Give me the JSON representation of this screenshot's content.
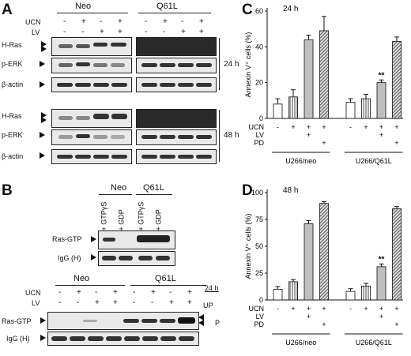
{
  "panels": {
    "a": "A",
    "b": "B",
    "c": "C",
    "d": "D"
  },
  "panel_a": {
    "groups": [
      "Neo",
      "Q61L"
    ],
    "row_ucn": "UCN",
    "row_lv": "LV",
    "ucn_signs": [
      "-",
      "+",
      "-",
      "+",
      "-",
      "+",
      "-",
      "+"
    ],
    "lv_signs": [
      "-",
      "-",
      "+",
      "+",
      "-",
      "-",
      "+",
      "+"
    ],
    "blot_labels": [
      "H-Ras",
      "p-ERK",
      "β-actin"
    ],
    "time_24": "24 h",
    "time_48": "48 h"
  },
  "panel_b": {
    "groups": [
      "Neo",
      "Q61L"
    ],
    "treat_labels": [
      "GTPγS",
      "GDP",
      "GTPγS",
      "GDP"
    ],
    "treat_signs": [
      "+",
      "+",
      "+",
      "+"
    ],
    "blot_labels": [
      "Ras-GTP",
      "IgG (H)"
    ],
    "time_24": "24 h",
    "up": "UP",
    "p": "P"
  },
  "chart_data": [
    {
      "type": "bar",
      "title": "24 h",
      "ylabel": "Annexin V⁺ cells (%)",
      "ylim": [
        0,
        60
      ],
      "yticks": [
        0,
        20,
        40,
        60
      ],
      "ytick_labels": [
        "0",
        "20",
        "40",
        "60"
      ],
      "row_labels": [
        "UCN",
        "LV",
        "PD"
      ],
      "conditions": [
        {
          "ucn": "-",
          "lv": "",
          "pd": ""
        },
        {
          "ucn": "+",
          "lv": "",
          "pd": ""
        },
        {
          "ucn": "+",
          "lv": "+",
          "pd": ""
        },
        {
          "ucn": "+",
          "lv": "",
          "pd": "+"
        },
        {
          "ucn": "-",
          "lv": "",
          "pd": ""
        },
        {
          "ucn": "+",
          "lv": "",
          "pd": ""
        },
        {
          "ucn": "+",
          "lv": "+",
          "pd": ""
        },
        {
          "ucn": "+",
          "lv": "",
          "pd": "+"
        }
      ],
      "groups": [
        "U266/neo",
        "U266/Q61L"
      ],
      "values": [
        8,
        12,
        44,
        49,
        9,
        11,
        20,
        43
      ],
      "errors": [
        3,
        4,
        2.5,
        8,
        2,
        2.5,
        1.5,
        2.5
      ],
      "patterns": [
        "white",
        "vstripe",
        "gray",
        "dstripe",
        "white",
        "vstripe",
        "gray",
        "dstripe"
      ],
      "annotation": {
        "text": "**",
        "bar_index": 6
      }
    },
    {
      "type": "bar",
      "title": "48 h",
      "ylabel": "Annexin V⁺ cells (%)",
      "ylim": [
        0,
        100
      ],
      "yticks": [
        0,
        25,
        50,
        75,
        100
      ],
      "ytick_labels": [
        "0",
        "25",
        "50",
        "75",
        "100"
      ],
      "row_labels": [
        "UCN",
        "LV",
        "PD"
      ],
      "conditions": [
        {
          "ucn": "-",
          "lv": "",
          "pd": ""
        },
        {
          "ucn": "+",
          "lv": "",
          "pd": ""
        },
        {
          "ucn": "+",
          "lv": "+",
          "pd": ""
        },
        {
          "ucn": "+",
          "lv": "",
          "pd": "+"
        },
        {
          "ucn": "-",
          "lv": "",
          "pd": ""
        },
        {
          "ucn": "+",
          "lv": "",
          "pd": ""
        },
        {
          "ucn": "+",
          "lv": "+",
          "pd": ""
        },
        {
          "ucn": "+",
          "lv": "",
          "pd": "+"
        }
      ],
      "groups": [
        "U266/neo",
        "U266/Q61L"
      ],
      "values": [
        10,
        17,
        71,
        90,
        8,
        13,
        31,
        85
      ],
      "errors": [
        2.5,
        2,
        3,
        1.5,
        2.5,
        2.5,
        2.5,
        2
      ],
      "patterns": [
        "white",
        "vstripe",
        "gray",
        "dstripe",
        "white",
        "vstripe",
        "gray",
        "dstripe"
      ],
      "annotation": {
        "text": "**",
        "bar_index": 6
      }
    }
  ]
}
